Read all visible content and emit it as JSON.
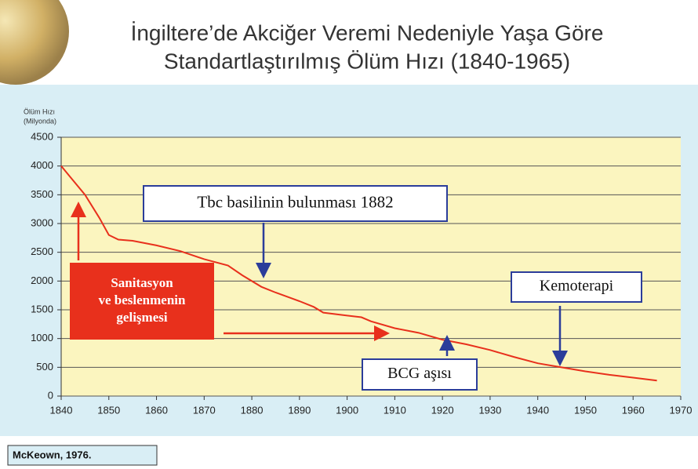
{
  "chart_data": {
    "type": "line",
    "title_lines": [
      "İngiltere’de Akciğer Veremi Nedeniyle Yaşa Göre",
      "Standartlaştırılmış Ölüm Hızı (1840-1965)"
    ],
    "y_label_lines": [
      "Ölüm Hızı",
      "(Milyonda)"
    ],
    "x": [
      1840,
      1842,
      1845,
      1848,
      1850,
      1852,
      1855,
      1860,
      1865,
      1870,
      1875,
      1878,
      1882,
      1885,
      1890,
      1893,
      1895,
      1900,
      1903,
      1905,
      1910,
      1915,
      1920,
      1925,
      1930,
      1935,
      1940,
      1945,
      1950,
      1955,
      1960,
      1965
    ],
    "values": [
      4000,
      3800,
      3500,
      3100,
      2800,
      2720,
      2700,
      2620,
      2520,
      2380,
      2270,
      2100,
      1900,
      1800,
      1650,
      1550,
      1450,
      1400,
      1370,
      1300,
      1180,
      1100,
      980,
      900,
      800,
      680,
      570,
      500,
      430,
      370,
      320,
      270
    ],
    "color": "#e8301c",
    "xlim": [
      1840,
      1970
    ],
    "xticks": [
      1840,
      1850,
      1860,
      1870,
      1880,
      1890,
      1900,
      1910,
      1920,
      1930,
      1940,
      1950,
      1960,
      1970
    ],
    "ylim": [
      0,
      4500
    ],
    "yticks": [
      0,
      500,
      1000,
      1500,
      2000,
      2500,
      3000,
      3500,
      4000,
      4500
    ],
    "grid": true,
    "annotations": [
      {
        "lines": [
          "Tbc basilinin bulunması 1882"
        ]
      },
      {
        "lines": [
          "Sanitasyon",
          "ve beslenmenin",
          "gelişmesi"
        ]
      },
      {
        "lines": [
          "Kemoterapi"
        ]
      },
      {
        "lines": [
          "BCG aşısı"
        ]
      }
    ],
    "source": "McKeown, 1976."
  }
}
